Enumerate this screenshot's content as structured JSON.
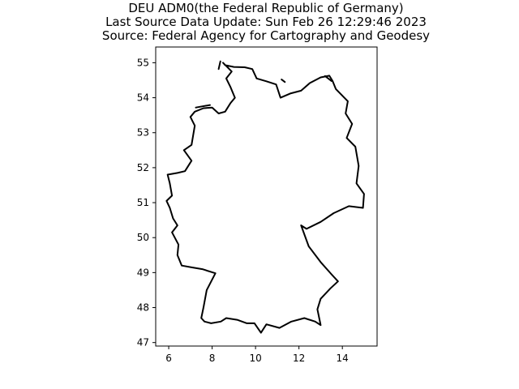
{
  "figure": {
    "title_lines": [
      "DEU ADM0(the Federal Republic of Germany)",
      "Last Source Data Update: Sun Feb 26 12:29:46 2023",
      "Source: Federal Agency for Cartography and Geodesy"
    ]
  },
  "map": {
    "type": "boundary-outline",
    "region": "Germany",
    "boundary_color": "#000000",
    "background_color": "#ffffff",
    "xlim": [
      5.4,
      15.6
    ],
    "ylim": [
      46.9,
      55.45
    ],
    "x_ticks": [
      6,
      8,
      10,
      12,
      14
    ],
    "y_ticks": [
      47,
      48,
      49,
      50,
      51,
      52,
      53,
      54,
      55
    ],
    "grid": false,
    "outline": [
      [
        8.5,
        55.0
      ],
      [
        8.6,
        54.93
      ],
      [
        9.0,
        54.88
      ],
      [
        9.5,
        54.87
      ],
      [
        9.85,
        54.82
      ],
      [
        10.05,
        54.55
      ],
      [
        10.5,
        54.47
      ],
      [
        10.95,
        54.38
      ],
      [
        11.15,
        54.0
      ],
      [
        11.6,
        54.12
      ],
      [
        12.1,
        54.2
      ],
      [
        12.5,
        54.42
      ],
      [
        13.0,
        54.58
      ],
      [
        13.4,
        54.63
      ],
      [
        13.55,
        54.48
      ],
      [
        13.7,
        54.25
      ],
      [
        14.25,
        53.9
      ],
      [
        14.15,
        53.55
      ],
      [
        14.45,
        53.25
      ],
      [
        14.2,
        52.85
      ],
      [
        14.6,
        52.6
      ],
      [
        14.75,
        52.05
      ],
      [
        14.65,
        51.55
      ],
      [
        15.0,
        51.25
      ],
      [
        14.95,
        50.85
      ],
      [
        14.3,
        50.9
      ],
      [
        13.6,
        50.7
      ],
      [
        13.0,
        50.45
      ],
      [
        12.35,
        50.25
      ],
      [
        12.1,
        50.35
      ],
      [
        12.45,
        49.75
      ],
      [
        13.0,
        49.3
      ],
      [
        13.5,
        48.95
      ],
      [
        13.8,
        48.75
      ],
      [
        13.45,
        48.55
      ],
      [
        13.0,
        48.25
      ],
      [
        12.85,
        47.95
      ],
      [
        13.0,
        47.5
      ],
      [
        12.75,
        47.6
      ],
      [
        12.25,
        47.7
      ],
      [
        11.65,
        47.6
      ],
      [
        11.1,
        47.42
      ],
      [
        10.5,
        47.52
      ],
      [
        10.25,
        47.28
      ],
      [
        9.95,
        47.55
      ],
      [
        9.6,
        47.55
      ],
      [
        9.15,
        47.65
      ],
      [
        8.65,
        47.7
      ],
      [
        8.4,
        47.6
      ],
      [
        7.95,
        47.55
      ],
      [
        7.65,
        47.6
      ],
      [
        7.5,
        47.7
      ],
      [
        7.6,
        48.0
      ],
      [
        7.75,
        48.5
      ],
      [
        8.15,
        48.98
      ],
      [
        7.55,
        49.1
      ],
      [
        7.05,
        49.15
      ],
      [
        6.6,
        49.2
      ],
      [
        6.4,
        49.5
      ],
      [
        6.45,
        49.8
      ],
      [
        6.15,
        50.15
      ],
      [
        6.4,
        50.35
      ],
      [
        6.2,
        50.55
      ],
      [
        6.05,
        50.85
      ],
      [
        5.9,
        51.05
      ],
      [
        6.15,
        51.2
      ],
      [
        6.05,
        51.55
      ],
      [
        5.95,
        51.8
      ],
      [
        6.4,
        51.85
      ],
      [
        6.75,
        51.9
      ],
      [
        7.05,
        52.2
      ],
      [
        6.7,
        52.5
      ],
      [
        7.05,
        52.65
      ],
      [
        7.2,
        53.2
      ],
      [
        7.0,
        53.45
      ],
      [
        7.2,
        53.6
      ],
      [
        7.6,
        53.7
      ],
      [
        8.0,
        53.72
      ],
      [
        8.3,
        53.55
      ],
      [
        8.6,
        53.6
      ],
      [
        8.85,
        53.85
      ],
      [
        9.05,
        54.0
      ],
      [
        8.85,
        54.3
      ],
      [
        8.65,
        54.55
      ],
      [
        8.9,
        54.75
      ],
      [
        8.5,
        55.0
      ]
    ],
    "islands": [
      [
        [
          7.25,
          53.72
        ],
        [
          7.9,
          53.79
        ]
      ],
      [
        [
          8.3,
          54.82
        ],
        [
          8.38,
          55.04
        ]
      ],
      [
        [
          11.2,
          54.52
        ],
        [
          11.35,
          54.45
        ]
      ],
      [
        [
          13.2,
          54.62
        ],
        [
          13.5,
          54.48
        ]
      ]
    ]
  }
}
